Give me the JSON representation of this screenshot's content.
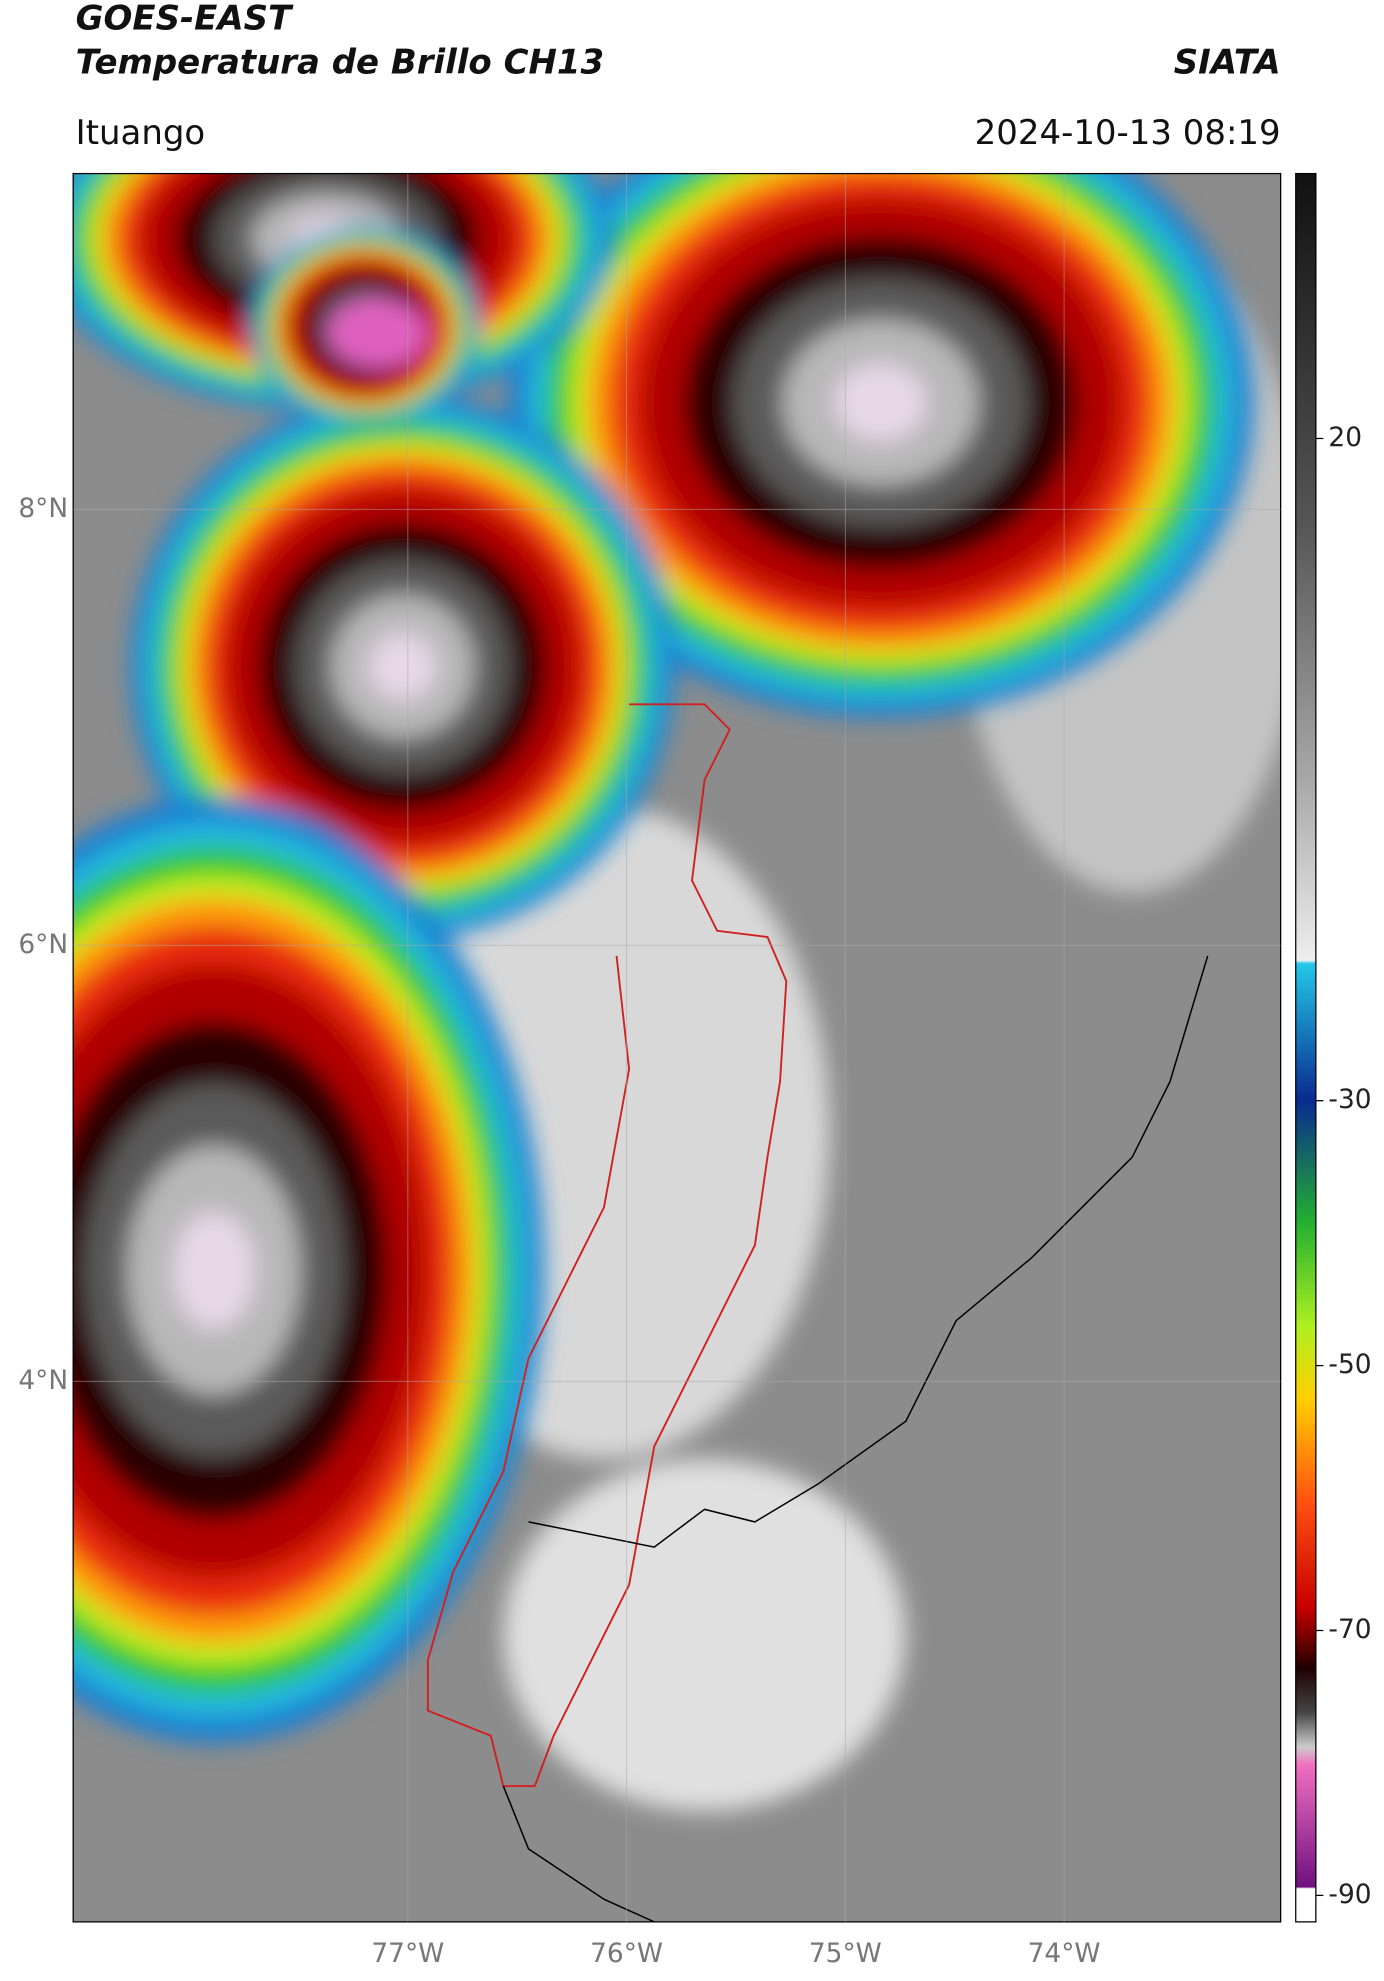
{
  "header": {
    "title_line1": "GOES-EAST",
    "title_line2": "Temperatura de Brillo CH13",
    "brand": "SIATA",
    "location": "Ituango",
    "datetime": "2024-10-13 08:19"
  },
  "map": {
    "xlim": [
      -78.53,
      -73.01
    ],
    "ylim": [
      1.52,
      9.54
    ],
    "xticks": [
      {
        "value": -77,
        "label": "77°W"
      },
      {
        "value": -76,
        "label": "76°W"
      },
      {
        "value": -75,
        "label": "75°W"
      },
      {
        "value": -74,
        "label": "74°W"
      }
    ],
    "yticks": [
      {
        "value": 8,
        "label": "8°N"
      },
      {
        "value": 6,
        "label": "6°N"
      },
      {
        "value": 4,
        "label": "4°N"
      }
    ]
  },
  "colorbar": {
    "lim": [
      -92,
      40
    ],
    "ticks": [
      20,
      -30,
      -50,
      -70,
      -90
    ]
  }
}
